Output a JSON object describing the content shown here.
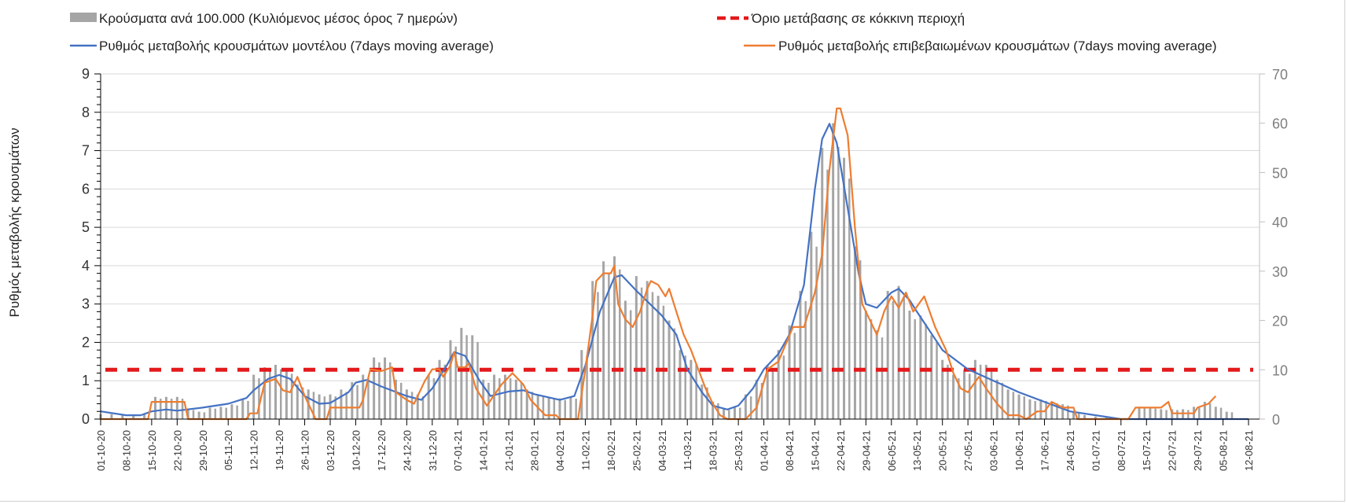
{
  "chart_data": {
    "type": "bar+line",
    "legend": {
      "bars": "Κρούσματα ανά 100.000 (Κυλιόμενος μέσος όρος 7 ημερών)",
      "threshold": "Όριο μετάβασης σε κόκκινη περιοχή",
      "model": "Ρυθμός μεταβολής κρουσμάτων μοντέλου (7days moving average)",
      "confirmed": "Ρυθμός μεταβολής επιβεβαιωμένων κρουσμάτων (7days moving average)"
    },
    "ylabel": "Ρυθμός μεταβολής κρουσμάτων",
    "ylim_left": [
      0,
      9
    ],
    "yticks_left": [
      "0",
      "1",
      "2",
      "3",
      "4",
      "5",
      "6",
      "7",
      "8",
      "9"
    ],
    "ylim_right": [
      0,
      70
    ],
    "yticks_right": [
      "0",
      "10",
      "20",
      "30",
      "40",
      "50",
      "60",
      "70"
    ],
    "x_unit": "days since 01-10-20",
    "x_labels": [
      "01-10-20",
      "08-10-20",
      "15-10-20",
      "22-10-20",
      "29-10-20",
      "05-11-20",
      "12-11-20",
      "19-11-20",
      "26-11-20",
      "03-12-20",
      "10-12-20",
      "17-12-20",
      "24-12-20",
      "31-12-20",
      "07-01-21",
      "14-01-21",
      "21-01-21",
      "28-01-21",
      "04-02-21",
      "11-02-21",
      "18-02-21",
      "25-02-21",
      "04-03-21",
      "11-03-21",
      "18-03-21",
      "25-03-21",
      "01-04-21",
      "08-04-21",
      "15-04-21",
      "22-04-21",
      "29-04-21",
      "06-05-21",
      "13-05-21",
      "20-05-21",
      "27-05-21",
      "03-06-21",
      "10-06-21",
      "17-06-21",
      "24-06-21",
      "01-07-21",
      "08-07-21",
      "15-07-21",
      "22-07-21",
      "29-07-21",
      "05-08-21",
      "12-08-21"
    ],
    "threshold_right_axis": 10,
    "bars": {
      "axis": "right",
      "day_step": 3,
      "values": [
        1,
        1,
        0.8,
        0.8,
        1,
        4.5,
        4.5,
        4.5,
        2,
        1.5,
        2.3,
        2.5,
        3,
        4,
        9,
        10.5,
        11,
        10,
        7,
        6,
        5,
        5,
        6,
        7.5,
        9,
        12.5,
        12.5,
        8,
        6,
        5,
        9,
        12,
        16,
        18.5,
        17,
        8,
        9,
        9,
        8,
        6,
        5,
        4.5,
        4.2,
        4.5,
        14,
        28,
        32,
        33,
        24,
        29,
        28,
        25,
        20,
        14,
        12,
        7,
        3.5,
        2,
        2.5,
        5,
        8,
        11,
        14,
        19,
        26,
        38,
        55,
        60,
        53,
        35,
        22,
        18,
        26,
        27,
        22,
        21,
        17,
        12,
        9,
        10,
        12,
        11,
        8,
        6,
        5,
        4,
        4,
        3.5,
        3,
        1.5,
        0.8,
        0.5,
        0.3,
        0,
        0,
        2.5,
        2.3,
        2,
        2,
        2,
        2.5,
        3.5,
        2.5,
        1.5,
        0
      ]
    },
    "series": [
      {
        "name": "model",
        "axis": "left",
        "color": "#4472c4",
        "points": [
          [
            0,
            0.2
          ],
          [
            7,
            0.1
          ],
          [
            11,
            0.1
          ],
          [
            14,
            0.2
          ],
          [
            18,
            0.25
          ],
          [
            21,
            0.22
          ],
          [
            28,
            0.3
          ],
          [
            35,
            0.4
          ],
          [
            40,
            0.55
          ],
          [
            42,
            0.75
          ],
          [
            46,
            1.05
          ],
          [
            49,
            1.15
          ],
          [
            52,
            1.05
          ],
          [
            56,
            0.6
          ],
          [
            60,
            0.4
          ],
          [
            63,
            0.42
          ],
          [
            68,
            0.7
          ],
          [
            70,
            0.95
          ],
          [
            73,
            1.02
          ],
          [
            77,
            0.85
          ],
          [
            84,
            0.6
          ],
          [
            88,
            0.5
          ],
          [
            91,
            0.8
          ],
          [
            95,
            1.4
          ],
          [
            97,
            1.75
          ],
          [
            100,
            1.65
          ],
          [
            104,
            1.0
          ],
          [
            107,
            0.6
          ],
          [
            112,
            0.72
          ],
          [
            116,
            0.75
          ],
          [
            119,
            0.65
          ],
          [
            126,
            0.5
          ],
          [
            130,
            0.6
          ],
          [
            133,
            1.4
          ],
          [
            137,
            2.8
          ],
          [
            141,
            3.7
          ],
          [
            143,
            3.75
          ],
          [
            147,
            3.35
          ],
          [
            154,
            2.7
          ],
          [
            158,
            2.2
          ],
          [
            161,
            1.3
          ],
          [
            165,
            0.7
          ],
          [
            168,
            0.35
          ],
          [
            172,
            0.25
          ],
          [
            175,
            0.35
          ],
          [
            179,
            0.8
          ],
          [
            182,
            1.3
          ],
          [
            186,
            1.7
          ],
          [
            189,
            2.2
          ],
          [
            193,
            3.5
          ],
          [
            196,
            6.0
          ],
          [
            198,
            7.3
          ],
          [
            200,
            7.7
          ],
          [
            202,
            7.2
          ],
          [
            205,
            5.5
          ],
          [
            208,
            3.8
          ],
          [
            210,
            3.0
          ],
          [
            213,
            2.9
          ],
          [
            217,
            3.3
          ],
          [
            219,
            3.4
          ],
          [
            222,
            3.1
          ],
          [
            224,
            2.8
          ],
          [
            231,
            1.8
          ],
          [
            238,
            1.3
          ],
          [
            245,
            1.0
          ],
          [
            252,
            0.7
          ],
          [
            259,
            0.45
          ],
          [
            266,
            0.2
          ],
          [
            273,
            0.1
          ],
          [
            280,
            0
          ],
          [
            315,
            0
          ]
        ]
      },
      {
        "name": "confirmed",
        "axis": "left",
        "color": "#ed7d31",
        "points": [
          [
            0,
            0
          ],
          [
            13,
            0
          ],
          [
            14,
            0.45
          ],
          [
            23,
            0.45
          ],
          [
            24,
            0
          ],
          [
            40,
            0
          ],
          [
            41,
            0.15
          ],
          [
            43,
            0.15
          ],
          [
            45,
            0.95
          ],
          [
            48,
            1.05
          ],
          [
            50,
            0.75
          ],
          [
            52,
            0.7
          ],
          [
            54,
            1.1
          ],
          [
            56,
            0.6
          ],
          [
            59,
            0
          ],
          [
            62,
            0
          ],
          [
            63,
            0.3
          ],
          [
            71,
            0.3
          ],
          [
            72,
            0.5
          ],
          [
            74,
            1.3
          ],
          [
            77,
            1.25
          ],
          [
            80,
            1.35
          ],
          [
            81,
            0.7
          ],
          [
            84,
            0.5
          ],
          [
            86,
            0.4
          ],
          [
            89,
            1.0
          ],
          [
            91,
            1.3
          ],
          [
            93,
            1.3
          ],
          [
            94,
            1.1
          ],
          [
            96,
            1.4
          ],
          [
            97,
            1.75
          ],
          [
            98,
            1.35
          ],
          [
            100,
            1.35
          ],
          [
            101,
            1.45
          ],
          [
            103,
            0.8
          ],
          [
            106,
            0.35
          ],
          [
            110,
            0.9
          ],
          [
            113,
            1.2
          ],
          [
            116,
            0.9
          ],
          [
            118,
            0.5
          ],
          [
            120,
            0.3
          ],
          [
            122,
            0.1
          ],
          [
            125,
            0.1
          ],
          [
            126,
            0
          ],
          [
            131,
            0
          ],
          [
            133,
            1.3
          ],
          [
            135,
            2.7
          ],
          [
            136,
            3.6
          ],
          [
            138,
            3.8
          ],
          [
            140,
            3.8
          ],
          [
            141,
            4.0
          ],
          [
            142,
            3.0
          ],
          [
            144,
            2.6
          ],
          [
            146,
            2.4
          ],
          [
            148,
            2.8
          ],
          [
            150,
            3.4
          ],
          [
            151,
            3.6
          ],
          [
            153,
            3.5
          ],
          [
            155,
            3.2
          ],
          [
            156,
            3.4
          ],
          [
            158,
            2.8
          ],
          [
            160,
            2.2
          ],
          [
            162,
            1.8
          ],
          [
            164,
            1.3
          ],
          [
            166,
            0.8
          ],
          [
            168,
            0.4
          ],
          [
            170,
            0.1
          ],
          [
            172,
            0
          ],
          [
            177,
            0
          ],
          [
            180,
            0.3
          ],
          [
            183,
            1.3
          ],
          [
            186,
            1.5
          ],
          [
            190,
            2.4
          ],
          [
            193,
            2.4
          ],
          [
            196,
            3.3
          ],
          [
            198,
            4.3
          ],
          [
            200,
            6.5
          ],
          [
            202,
            8.1
          ],
          [
            203,
            8.1
          ],
          [
            205,
            7.4
          ],
          [
            207,
            5.0
          ],
          [
            209,
            3.0
          ],
          [
            211,
            2.6
          ],
          [
            213,
            2.2
          ],
          [
            215,
            2.8
          ],
          [
            217,
            3.2
          ],
          [
            219,
            2.9
          ],
          [
            221,
            3.3
          ],
          [
            223,
            2.8
          ],
          [
            226,
            3.2
          ],
          [
            229,
            2.4
          ],
          [
            232,
            1.8
          ],
          [
            234,
            1.2
          ],
          [
            236,
            0.8
          ],
          [
            238,
            0.7
          ],
          [
            241,
            1.1
          ],
          [
            243,
            0.8
          ],
          [
            246,
            0.4
          ],
          [
            249,
            0.1
          ],
          [
            252,
            0.1
          ],
          [
            254,
            0
          ],
          [
            257,
            0.2
          ],
          [
            259,
            0.2
          ],
          [
            261,
            0.45
          ],
          [
            264,
            0.3
          ],
          [
            267,
            0.3
          ],
          [
            268,
            0
          ],
          [
            282,
            0
          ],
          [
            284,
            0.3
          ],
          [
            291,
            0.3
          ],
          [
            293,
            0.45
          ],
          [
            294,
            0.15
          ],
          [
            300,
            0.15
          ],
          [
            301,
            0.3
          ],
          [
            304,
            0.4
          ],
          [
            306,
            0.6
          ]
        ]
      }
    ],
    "colors": {
      "bars": "#a5a5a5",
      "threshold": "#e31a1c",
      "grid": "#d9d9d9"
    }
  }
}
